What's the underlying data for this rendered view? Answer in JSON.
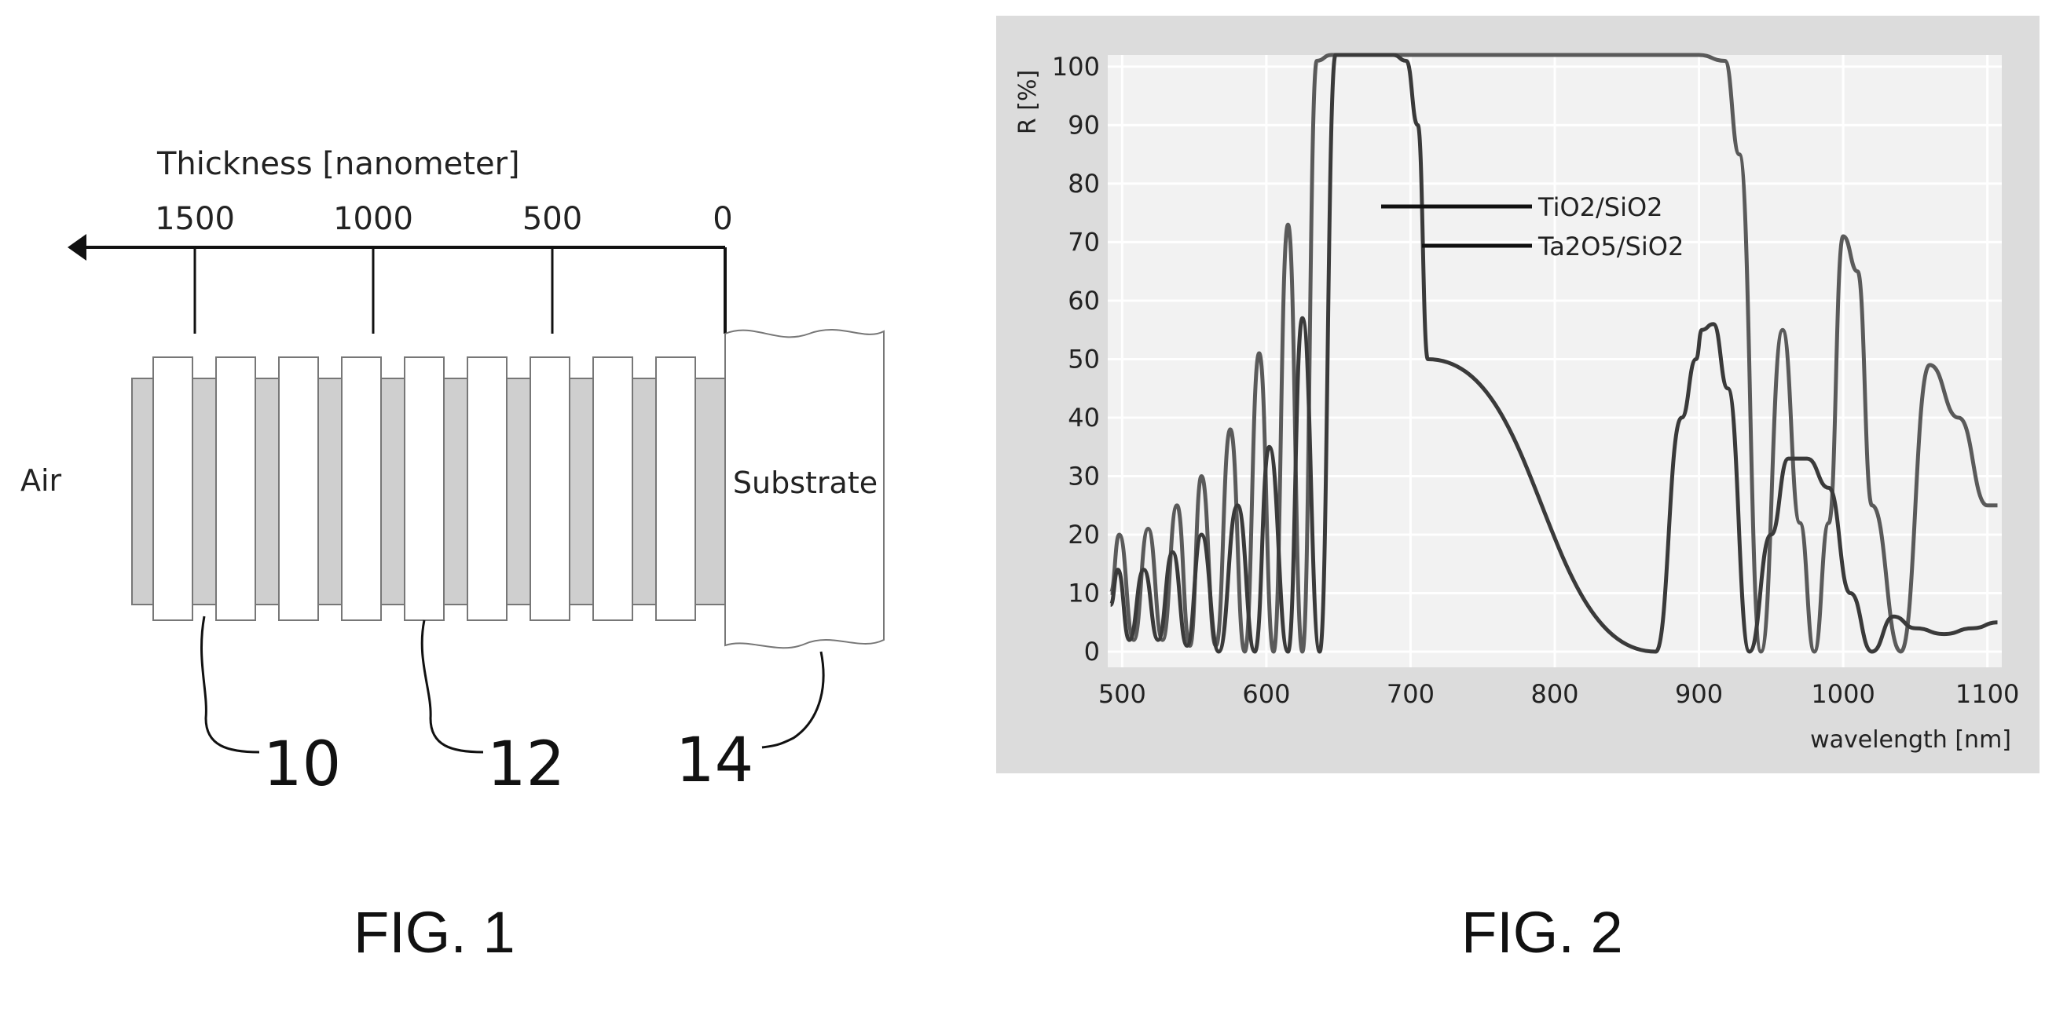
{
  "figure1": {
    "axis_title": "Thickness [nanometer]",
    "ticks": [
      "1500",
      "1000",
      "500",
      "0"
    ],
    "air_label": "Air",
    "substrate_label": "Substrate",
    "ref_numerals": [
      "10",
      "12",
      "14"
    ],
    "caption": "FIG. 1"
  },
  "figure2": {
    "caption": "FIG. 2",
    "chart_data": {
      "type": "line",
      "title": "",
      "ylabel": "R [%]",
      "xlabel": "wavelength [nm]",
      "xlim": [
        490,
        1110
      ],
      "ylim": [
        0,
        102
      ],
      "xticks": [
        "500",
        "600",
        "700",
        "800",
        "900",
        "1000",
        "1100"
      ],
      "yticks": [
        "0",
        "10",
        "20",
        "30",
        "40",
        "50",
        "60",
        "70",
        "80",
        "90",
        "100"
      ],
      "grid": true,
      "annotations": [
        "TiO2/SiO2",
        "Ta2O5/SiO2"
      ],
      "series": [
        {
          "name": "TiO2/SiO2",
          "color": "#5a5a5a",
          "x": [
            492,
            498,
            508,
            518,
            528,
            538,
            547,
            555,
            565,
            575,
            585,
            595,
            605,
            615,
            625,
            635,
            645,
            655,
            665,
            672,
            677,
            683,
            688,
            900,
            918,
            928,
            943,
            958,
            970,
            980,
            990,
            1000,
            1010,
            1020,
            1040,
            1060,
            1080,
            1100,
            1107
          ],
          "y": [
            10,
            20,
            2,
            21,
            2,
            25,
            1,
            30,
            1,
            38,
            0,
            51,
            0,
            73,
            0,
            101,
            102,
            102,
            102,
            102,
            102,
            102,
            102,
            102,
            101,
            85,
            0,
            55,
            22,
            0,
            22,
            71,
            65,
            25,
            0,
            49,
            40,
            25,
            25
          ]
        },
        {
          "name": "Ta2O5/SiO2",
          "color": "#3a3a3a",
          "x": [
            492,
            497,
            505,
            515,
            525,
            535,
            545,
            555,
            567,
            580,
            592,
            602,
            615,
            625,
            637,
            648,
            660,
            672,
            680,
            688,
            697,
            705,
            712,
            870,
            888,
            898,
            902,
            910,
            920,
            935,
            950,
            962,
            975,
            990,
            1005,
            1020,
            1035,
            1050,
            1070,
            1090,
            1107
          ],
          "y": [
            8,
            14,
            2,
            14,
            2,
            17,
            1,
            20,
            0,
            25,
            0,
            35,
            0,
            57,
            0,
            102,
            102,
            102,
            102,
            102,
            101,
            90,
            50,
            0,
            40,
            50,
            55,
            56,
            45,
            0,
            20,
            33,
            33,
            28,
            10,
            0,
            6,
            4,
            3,
            4,
            5
          ]
        }
      ]
    }
  }
}
